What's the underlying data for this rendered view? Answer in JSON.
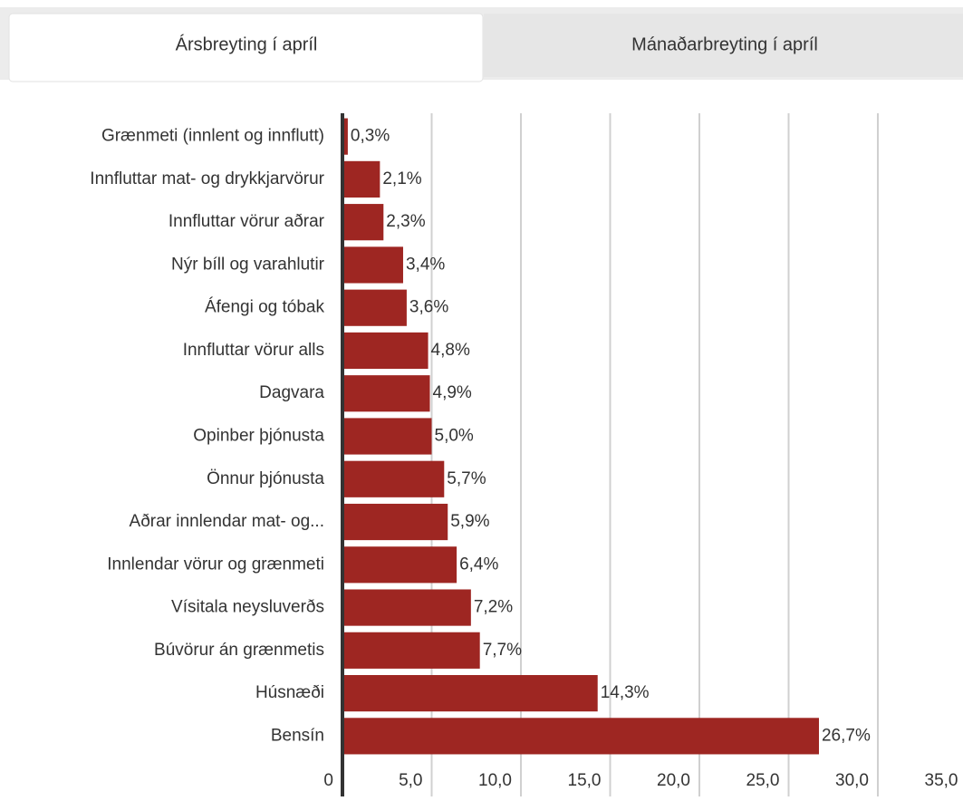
{
  "tabs": [
    "Ársbreyting í apríl",
    "Mánaðarbreyting í apríl"
  ],
  "chart_data": {
    "type": "hbar",
    "categories": [
      "Grænmeti (innlent og innflutt)",
      "Innfluttar mat- og drykkjarvörur",
      "Innfluttar vörur aðrar",
      "Nýr bíll og varahlutir",
      "Áfengi og tóbak",
      "Innfluttar vörur alls",
      "Dagvara",
      "Opinber þjónusta",
      "Önnur þjónusta",
      "Aðrar innlendar mat- og...",
      "Innlendar vörur og grænmeti",
      "Vísitala neysluverðs",
      "Búvörur án grænmetis",
      "Húsnæði",
      "Bensín"
    ],
    "values": [
      0.3,
      2.1,
      2.3,
      3.4,
      3.6,
      4.8,
      4.9,
      5.0,
      5.7,
      5.9,
      6.4,
      7.2,
      7.7,
      14.3,
      26.7
    ],
    "value_labels": [
      "0,3%",
      "2,1%",
      "2,3%",
      "3,4%",
      "3,6%",
      "4,8%",
      "4,9%",
      "5,0%",
      "5,7%",
      "5,9%",
      "6,4%",
      "7,2%",
      "7,7%",
      "14,3%",
      "26,7%"
    ],
    "color": "#9e2622",
    "xlim": [
      0,
      35
    ],
    "xticks": [
      0,
      {
        "value": 5,
        "label": "5,0"
      },
      {
        "value": 10,
        "label": "10,0"
      },
      {
        "value": 15,
        "label": "15,0"
      },
      {
        "value": 20,
        "label": "20,0"
      },
      {
        "value": 25,
        "label": "25,0"
      },
      {
        "value": 30,
        "label": "30,0"
      },
      {
        "value": 35,
        "label": "35,0"
      }
    ],
    "grid": true
  }
}
